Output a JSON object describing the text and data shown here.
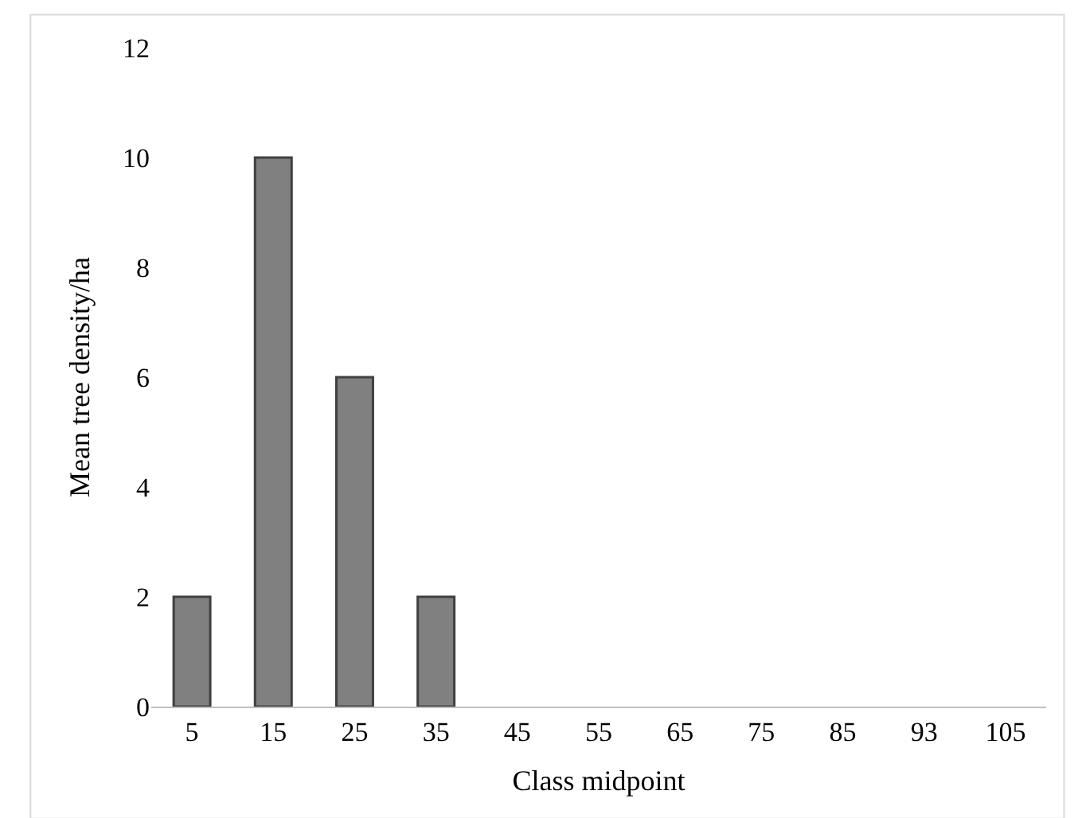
{
  "chart_data": {
    "type": "bar",
    "xlabel": "Class midpoint",
    "ylabel": "Mean tree density/ha",
    "categories": [
      "5",
      "15",
      "25",
      "35",
      "45",
      "55",
      "65",
      "75",
      "85",
      "93",
      "105"
    ],
    "values": [
      2,
      10,
      6,
      2,
      0,
      0,
      0,
      0,
      0,
      0,
      0
    ],
    "color": "#808080",
    "ylim": [
      0,
      12
    ],
    "yticks": [
      0,
      2,
      4,
      6,
      8,
      10,
      12
    ],
    "grid": false
  }
}
